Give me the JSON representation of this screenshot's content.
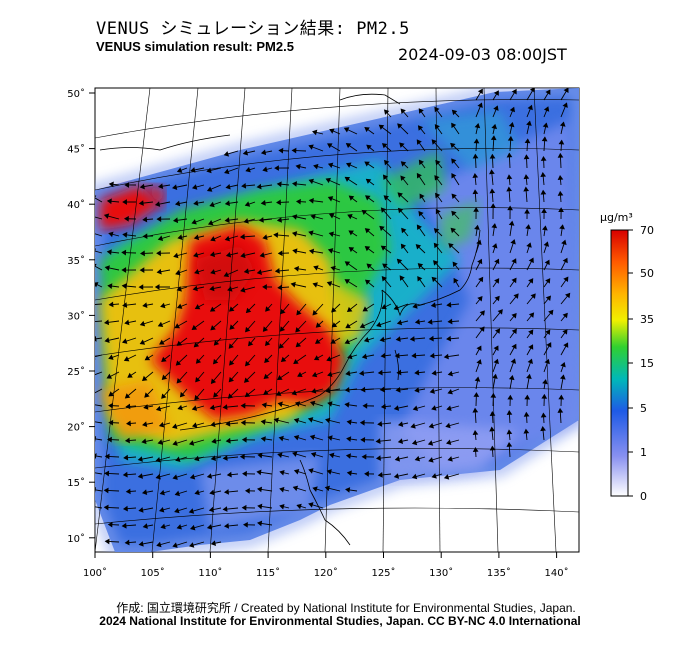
{
  "header": {
    "title_jp": "VENUS シミュレーション結果: PM2.5",
    "title_en": "VENUS simulation result: PM2.5",
    "timestamp": "2024-09-03 08:00JST"
  },
  "map": {
    "variable": "PM2.5",
    "lon_ticks": [
      "100˚",
      "105˚",
      "110˚",
      "115˚",
      "120˚",
      "125˚",
      "130˚",
      "135˚",
      "140˚"
    ],
    "lat_ticks": [
      "50˚",
      "45˚",
      "40˚",
      "35˚",
      "30˚",
      "25˚",
      "20˚",
      "15˚",
      "10˚"
    ],
    "lon_range": [
      100,
      142
    ],
    "lat_range": [
      9,
      51
    ],
    "colors": {
      "high": "#e8110f",
      "mid": "#f6c50c",
      "low": "#12b82c",
      "clean": "#2b6be0",
      "background": "#ffffff"
    }
  },
  "colorbar": {
    "unit": "µg/m³",
    "ticks": [
      "70",
      "50",
      "35",
      "15",
      "5",
      "1",
      "0"
    ],
    "stops": [
      "#d80000",
      "#ff5a00",
      "#ffb400",
      "#f0f000",
      "#30d030",
      "#00b8b8",
      "#1e5ae6",
      "#8890f0",
      "#ffffff"
    ]
  },
  "credits": {
    "line1": "作成: 国立環境研究所 / Created by National Institute for Environmental Studies, Japan.",
    "line2": "2024 National Institute for Environmental Studies, Japan. CC BY-NC 4.0 International"
  }
}
